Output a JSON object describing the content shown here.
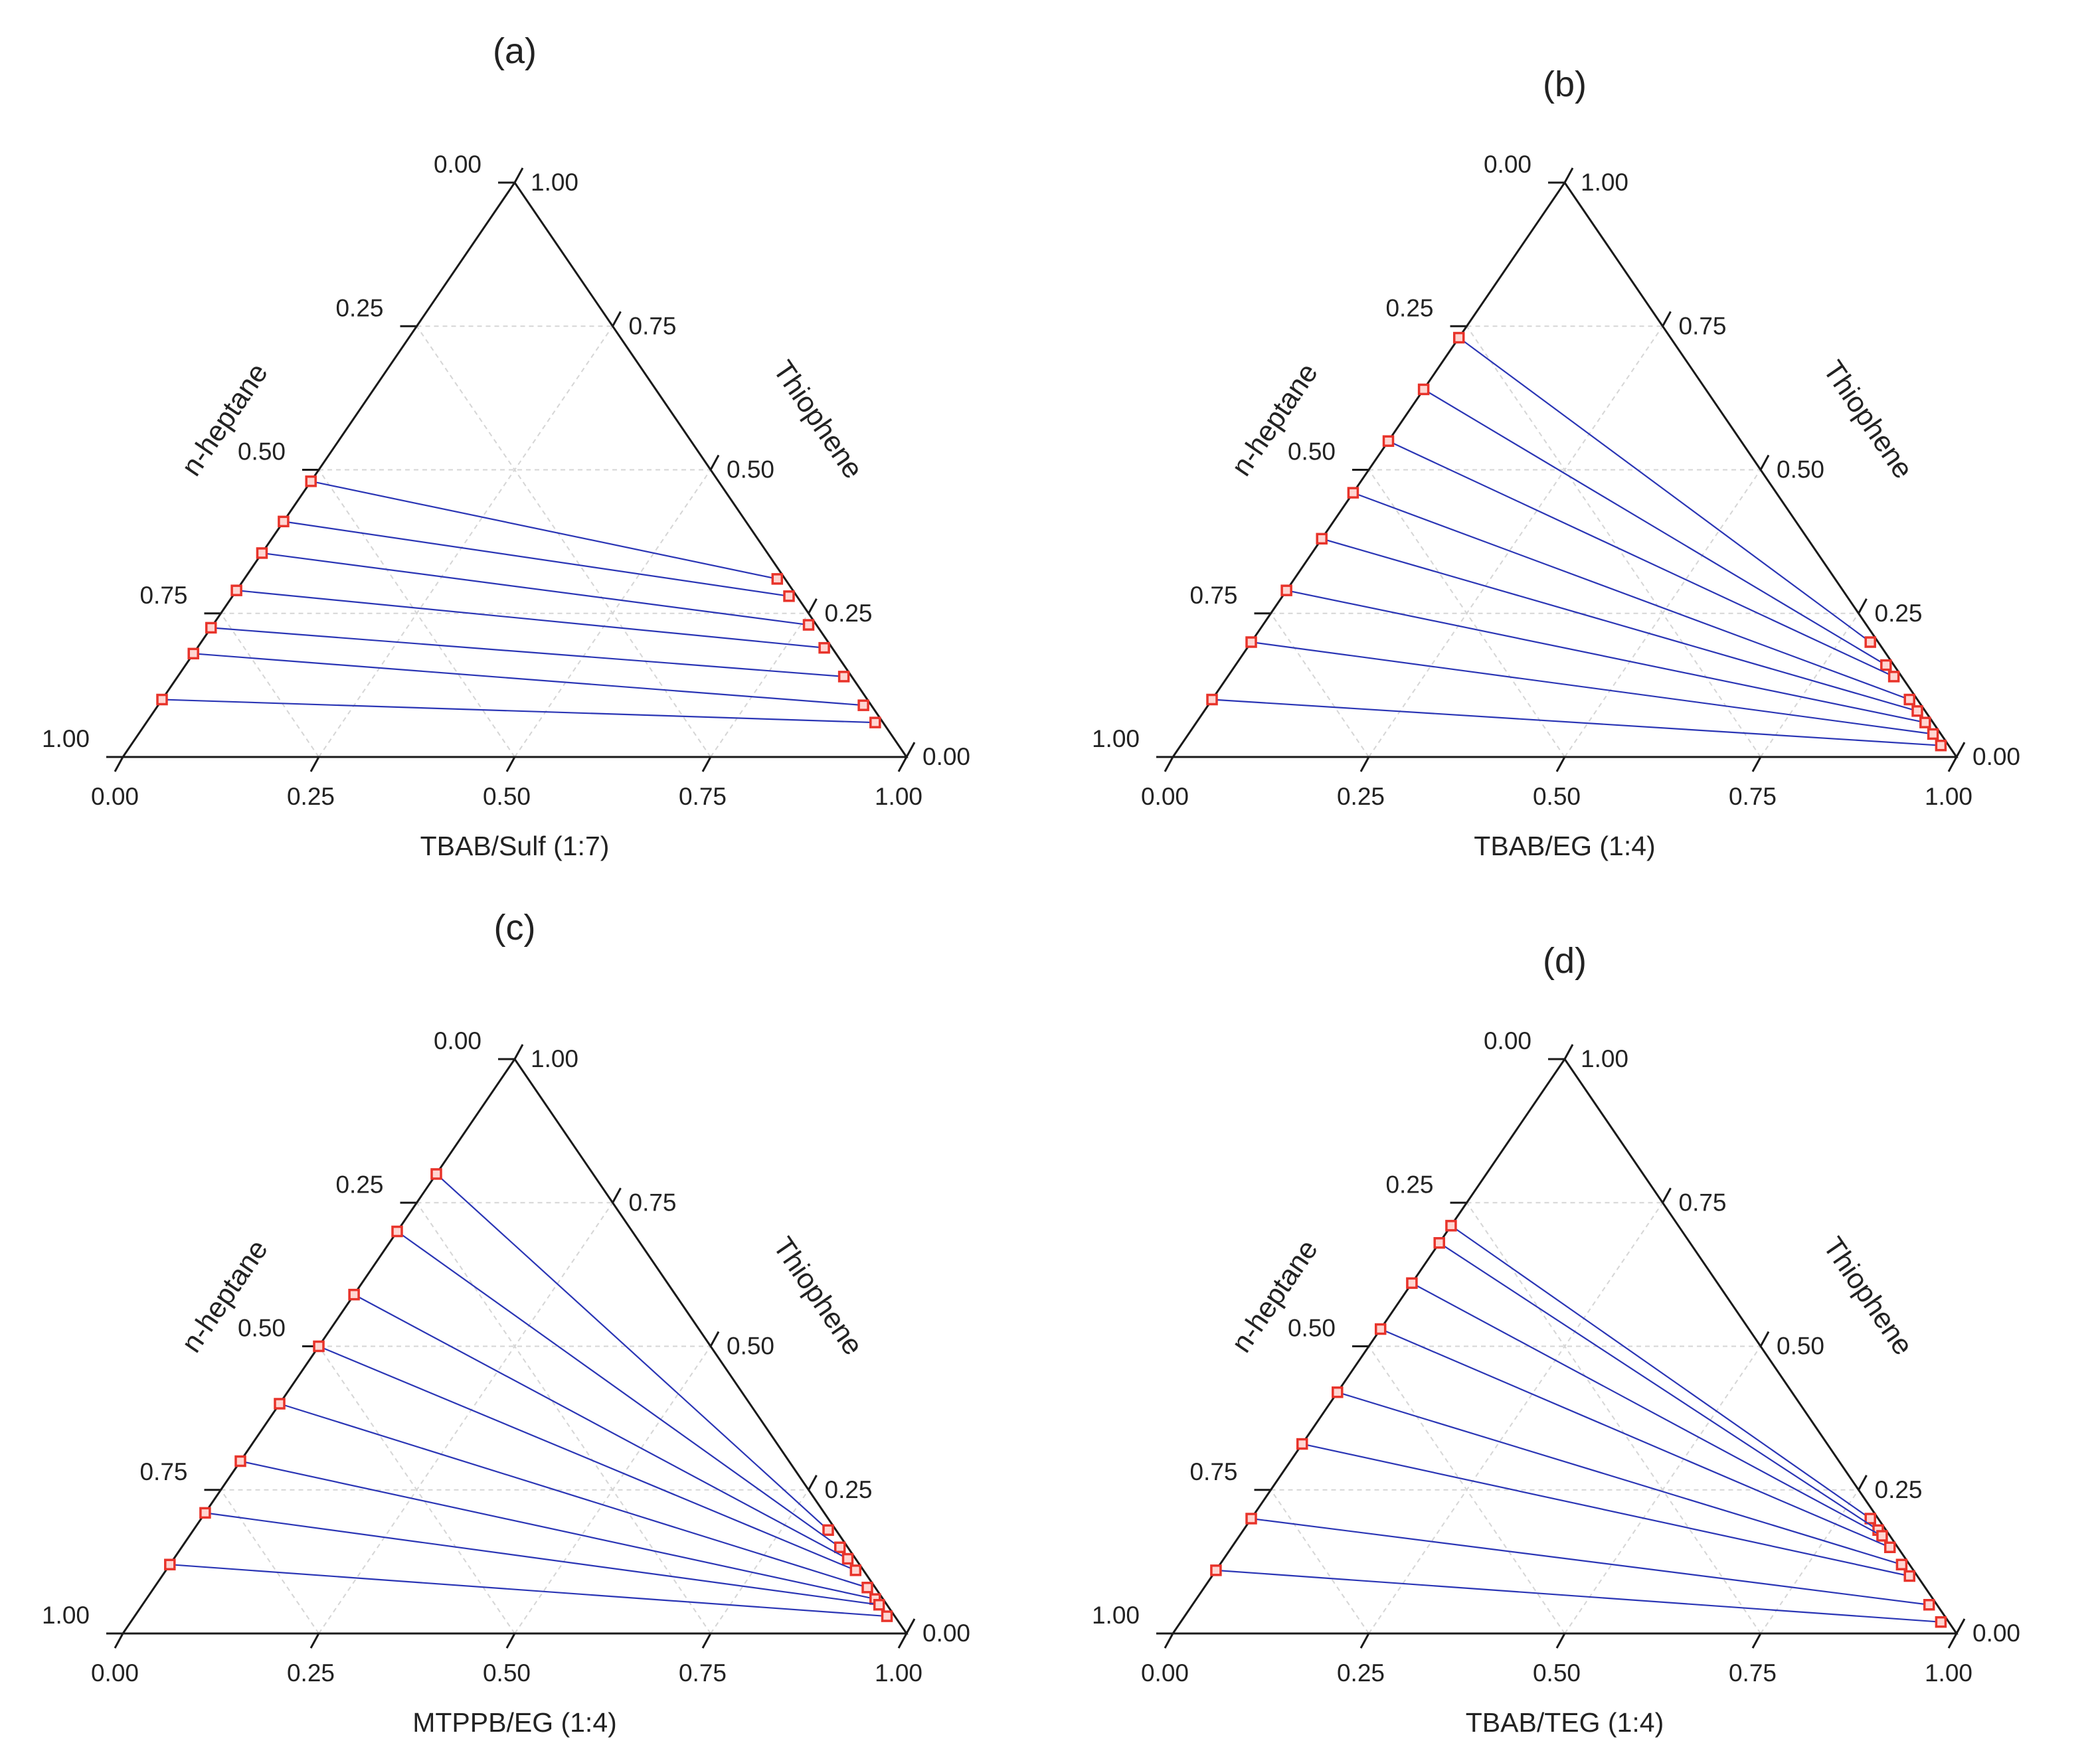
{
  "chart_data": [
    {
      "type": "scatter",
      "subtype": "ternary",
      "title": "(a)",
      "bottom_axis_label": "TBAB/Sulf (1:7)",
      "left_axis_label": "n-heptane",
      "right_axis_label": "Thiophene",
      "tick_labels": [
        "0.00",
        "0.25",
        "0.50",
        "0.75",
        "1.00"
      ],
      "grid": true,
      "tie_line_color": "#2a35b5",
      "marker_color": "#e8332a",
      "tie_lines": [
        {
          "raffinate": {
            "n_heptane": 0.52,
            "thiophene": 0.48
          },
          "extract": {
            "n_heptane": 0.01,
            "thiophene": 0.31
          }
        },
        {
          "raffinate": {
            "n_heptane": 0.59,
            "thiophene": 0.41
          },
          "extract": {
            "n_heptane": 0.01,
            "thiophene": 0.28
          }
        },
        {
          "raffinate": {
            "n_heptane": 0.645,
            "thiophene": 0.355
          },
          "extract": {
            "n_heptane": 0.01,
            "thiophene": 0.23
          }
        },
        {
          "raffinate": {
            "n_heptane": 0.71,
            "thiophene": 0.29
          },
          "extract": {
            "n_heptane": 0.01,
            "thiophene": 0.19
          }
        },
        {
          "raffinate": {
            "n_heptane": 0.775,
            "thiophene": 0.225
          },
          "extract": {
            "n_heptane": 0.01,
            "thiophene": 0.14
          }
        },
        {
          "raffinate": {
            "n_heptane": 0.82,
            "thiophene": 0.18
          },
          "extract": {
            "n_heptane": 0.01,
            "thiophene": 0.09
          }
        },
        {
          "raffinate": {
            "n_heptane": 0.9,
            "thiophene": 0.1
          },
          "extract": {
            "n_heptane": 0.01,
            "thiophene": 0.06
          }
        }
      ]
    },
    {
      "type": "scatter",
      "subtype": "ternary",
      "title": "(b)",
      "bottom_axis_label": "TBAB/EG (1:4)",
      "left_axis_label": "n-heptane",
      "right_axis_label": "Thiophene",
      "tick_labels": [
        "0.00",
        "0.25",
        "0.50",
        "0.75",
        "1.00"
      ],
      "grid": true,
      "tie_line_color": "#2a35b5",
      "marker_color": "#e8332a",
      "tie_lines": [
        {
          "raffinate": {
            "n_heptane": 0.27,
            "thiophene": 0.73
          },
          "extract": {
            "n_heptane": 0.01,
            "thiophene": 0.2
          }
        },
        {
          "raffinate": {
            "n_heptane": 0.36,
            "thiophene": 0.64
          },
          "extract": {
            "n_heptane": 0.01,
            "thiophene": 0.16
          }
        },
        {
          "raffinate": {
            "n_heptane": 0.45,
            "thiophene": 0.55
          },
          "extract": {
            "n_heptane": 0.01,
            "thiophene": 0.14
          }
        },
        {
          "raffinate": {
            "n_heptane": 0.54,
            "thiophene": 0.46
          },
          "extract": {
            "n_heptane": 0.01,
            "thiophene": 0.1
          }
        },
        {
          "raffinate": {
            "n_heptane": 0.62,
            "thiophene": 0.38
          },
          "extract": {
            "n_heptane": 0.01,
            "thiophene": 0.08
          }
        },
        {
          "raffinate": {
            "n_heptane": 0.71,
            "thiophene": 0.29
          },
          "extract": {
            "n_heptane": 0.01,
            "thiophene": 0.06
          }
        },
        {
          "raffinate": {
            "n_heptane": 0.8,
            "thiophene": 0.2
          },
          "extract": {
            "n_heptane": 0.01,
            "thiophene": 0.04
          }
        },
        {
          "raffinate": {
            "n_heptane": 0.9,
            "thiophene": 0.1
          },
          "extract": {
            "n_heptane": 0.01,
            "thiophene": 0.02
          }
        }
      ]
    },
    {
      "type": "scatter",
      "subtype": "ternary",
      "title": "(c)",
      "bottom_axis_label": "MTPPB/EG (1:4)",
      "left_axis_label": "n-heptane",
      "right_axis_label": "Thiophene",
      "tick_labels": [
        "0.00",
        "0.25",
        "0.50",
        "0.75",
        "1.00"
      ],
      "grid": true,
      "tie_line_color": "#2a35b5",
      "marker_color": "#e8332a",
      "tie_lines": [
        {
          "raffinate": {
            "n_heptane": 0.2,
            "thiophene": 0.8
          },
          "extract": {
            "n_heptane": 0.01,
            "thiophene": 0.18
          }
        },
        {
          "raffinate": {
            "n_heptane": 0.3,
            "thiophene": 0.7
          },
          "extract": {
            "n_heptane": 0.01,
            "thiophene": 0.15
          }
        },
        {
          "raffinate": {
            "n_heptane": 0.41,
            "thiophene": 0.59
          },
          "extract": {
            "n_heptane": 0.01,
            "thiophene": 0.13
          }
        },
        {
          "raffinate": {
            "n_heptane": 0.5,
            "thiophene": 0.5
          },
          "extract": {
            "n_heptane": 0.01,
            "thiophene": 0.11
          }
        },
        {
          "raffinate": {
            "n_heptane": 0.6,
            "thiophene": 0.4
          },
          "extract": {
            "n_heptane": 0.01,
            "thiophene": 0.08
          }
        },
        {
          "raffinate": {
            "n_heptane": 0.7,
            "thiophene": 0.3
          },
          "extract": {
            "n_heptane": 0.01,
            "thiophene": 0.06
          }
        },
        {
          "raffinate": {
            "n_heptane": 0.79,
            "thiophene": 0.21
          },
          "extract": {
            "n_heptane": 0.01,
            "thiophene": 0.05
          }
        },
        {
          "raffinate": {
            "n_heptane": 0.88,
            "thiophene": 0.12
          },
          "extract": {
            "n_heptane": 0.01,
            "thiophene": 0.03
          }
        }
      ]
    },
    {
      "type": "scatter",
      "subtype": "ternary",
      "title": "(d)",
      "bottom_axis_label": "TBAB/TEG (1:4)",
      "left_axis_label": "n-heptane",
      "right_axis_label": "Thiophene",
      "tick_labels": [
        "0.00",
        "0.25",
        "0.50",
        "0.75",
        "1.00"
      ],
      "grid": true,
      "tie_line_color": "#2a35b5",
      "marker_color": "#e8332a",
      "tie_lines": [
        {
          "raffinate": {
            "n_heptane": 0.29,
            "thiophene": 0.71
          },
          "extract": {
            "n_heptane": 0.01,
            "thiophene": 0.2
          }
        },
        {
          "raffinate": {
            "n_heptane": 0.32,
            "thiophene": 0.68
          },
          "extract": {
            "n_heptane": 0.01,
            "thiophene": 0.18
          }
        },
        {
          "raffinate": {
            "n_heptane": 0.39,
            "thiophene": 0.61
          },
          "extract": {
            "n_heptane": 0.01,
            "thiophene": 0.17
          }
        },
        {
          "raffinate": {
            "n_heptane": 0.47,
            "thiophene": 0.53
          },
          "extract": {
            "n_heptane": 0.01,
            "thiophene": 0.15
          }
        },
        {
          "raffinate": {
            "n_heptane": 0.58,
            "thiophene": 0.42
          },
          "extract": {
            "n_heptane": 0.01,
            "thiophene": 0.12
          }
        },
        {
          "raffinate": {
            "n_heptane": 0.67,
            "thiophene": 0.33
          },
          "extract": {
            "n_heptane": 0.01,
            "thiophene": 0.1
          }
        },
        {
          "raffinate": {
            "n_heptane": 0.8,
            "thiophene": 0.2
          },
          "extract": {
            "n_heptane": 0.01,
            "thiophene": 0.05
          }
        },
        {
          "raffinate": {
            "n_heptane": 0.89,
            "thiophene": 0.11
          },
          "extract": {
            "n_heptane": 0.01,
            "thiophene": 0.02
          }
        }
      ]
    }
  ]
}
